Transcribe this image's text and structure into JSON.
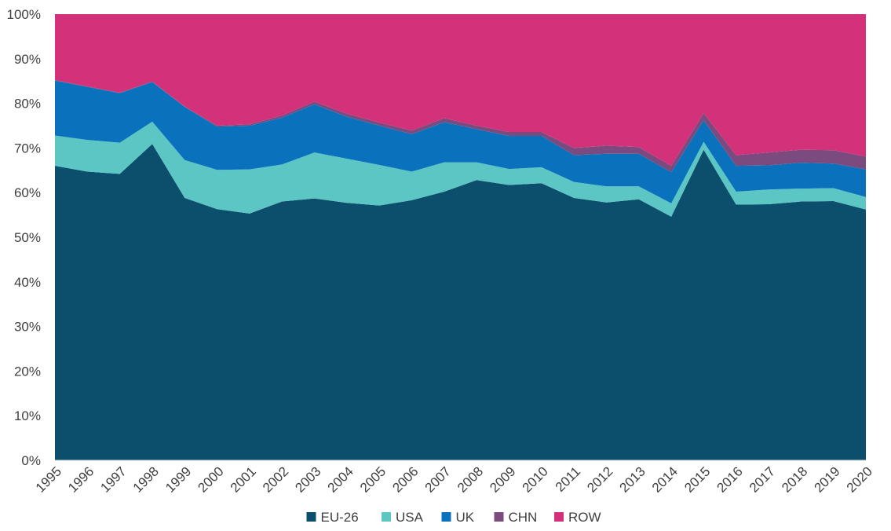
{
  "chart_data": {
    "type": "area",
    "stacked": true,
    "percent": true,
    "categories": [
      "1995",
      "1996",
      "1997",
      "1998",
      "1999",
      "2000",
      "2001",
      "2002",
      "2003",
      "2004",
      "2005",
      "2006",
      "2007",
      "2008",
      "2009",
      "2010",
      "2011",
      "2012",
      "2013",
      "2014",
      "2015",
      "2016",
      "2017",
      "2018",
      "2019",
      "2020"
    ],
    "y_ticks": [
      "0%",
      "10%",
      "20%",
      "30%",
      "40%",
      "50%",
      "60%",
      "70%",
      "80%",
      "90%",
      "100%"
    ],
    "ylim": [
      0,
      100
    ],
    "title": "",
    "xlabel": "",
    "ylabel": "",
    "grid": false,
    "legend_position": "bottom",
    "series": [
      {
        "name": "EU-26",
        "color": "#0b4f6c",
        "values": [
          66.0,
          64.7,
          64.2,
          70.9,
          58.8,
          56.3,
          55.3,
          58.0,
          58.7,
          57.7,
          57.1,
          58.3,
          60.2,
          62.8,
          61.7,
          62.1,
          58.8,
          57.8,
          58.5,
          54.6,
          69.6,
          57.3,
          57.4,
          58.0,
          58.1,
          56.2
        ]
      },
      {
        "name": "USA",
        "color": "#5cc6c4",
        "values": [
          6.8,
          7.1,
          7.0,
          5.0,
          8.5,
          8.8,
          9.9,
          8.3,
          10.3,
          9.9,
          9.1,
          6.4,
          6.6,
          4.0,
          3.6,
          3.6,
          3.6,
          3.6,
          2.9,
          3.0,
          1.8,
          2.9,
          3.3,
          2.9,
          2.9,
          2.8
        ]
      },
      {
        "name": "UK",
        "color": "#0a72bd",
        "values": [
          12.3,
          11.9,
          11.1,
          8.9,
          11.9,
          9.7,
          9.8,
          10.5,
          10.8,
          9.4,
          8.8,
          8.4,
          9.0,
          7.4,
          7.4,
          7.0,
          6.0,
          7.3,
          7.3,
          7.0,
          4.8,
          5.8,
          5.4,
          5.8,
          5.5,
          6.2
        ]
      },
      {
        "name": "CHN",
        "color": "#7b4a7e",
        "values": [
          0.1,
          0.1,
          0.1,
          0.1,
          0.1,
          0.2,
          0.3,
          0.5,
          0.6,
          0.7,
          0.7,
          0.8,
          0.9,
          0.8,
          0.9,
          0.9,
          1.6,
          1.8,
          1.5,
          1.4,
          1.6,
          2.4,
          2.9,
          2.9,
          3.0,
          2.9
        ]
      },
      {
        "name": "ROW",
        "color": "#d4317b",
        "values": [
          14.8,
          16.2,
          17.6,
          15.1,
          20.7,
          25.0,
          24.7,
          22.7,
          19.6,
          22.3,
          24.3,
          26.1,
          23.3,
          25.0,
          26.4,
          26.4,
          30.0,
          29.5,
          29.8,
          34.0,
          22.2,
          31.6,
          31.0,
          30.4,
          30.5,
          31.9
        ]
      }
    ]
  }
}
